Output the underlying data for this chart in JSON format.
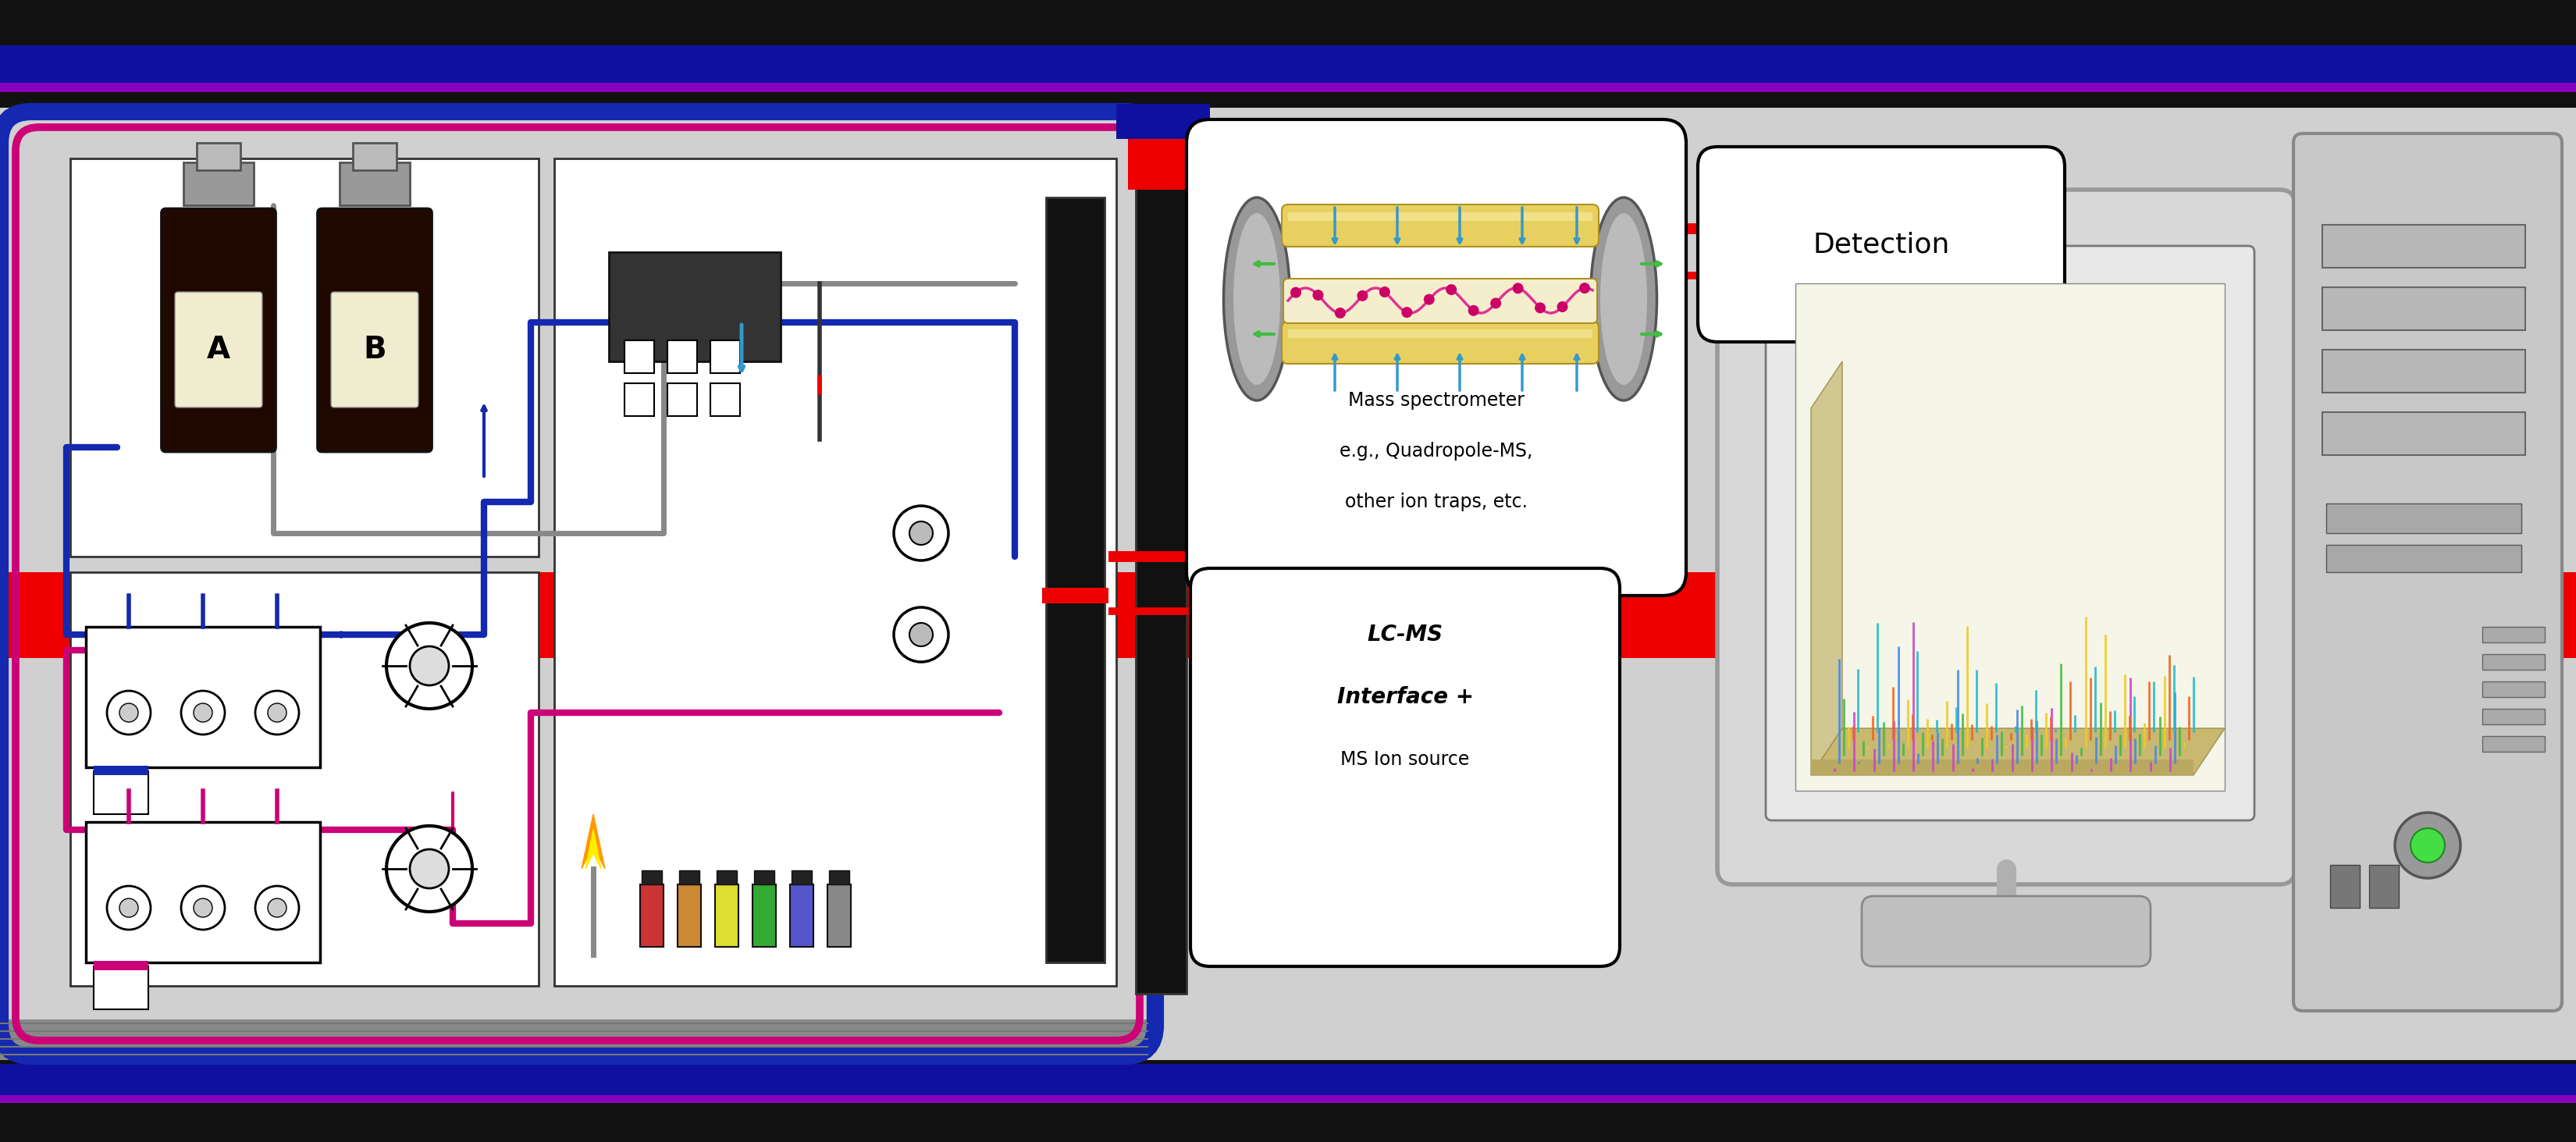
{
  "bg_color": "#d0d0d0",
  "fig_width": 33.0,
  "fig_height": 14.63,
  "colors": {
    "blue": "#1428b0",
    "dark_blue": "#1010a0",
    "magenta": "#cc0077",
    "red": "#ee0000",
    "gray": "#808080",
    "light_gray": "#c8c8c8",
    "mid_gray": "#a0a0a0",
    "dark_gray": "#444444",
    "white": "#ffffff",
    "black": "#000000",
    "bottle_brown": "#1e0800",
    "label_cream": "#f0ecd0",
    "yellow_rod": "#e8d060",
    "green_arrow": "#44bb44",
    "steel_blue": "#3399cc",
    "purple": "#8800bb"
  },
  "detection_label": "Detection",
  "ms_line1": "Mass spectrometer",
  "ms_line2": "e.g., Quadropole-MS,",
  "ms_line3": "other ion traps, etc.",
  "iface_line1": "LC-MS",
  "iface_line2": "Interface +",
  "iface_line3": "MS Ion source"
}
